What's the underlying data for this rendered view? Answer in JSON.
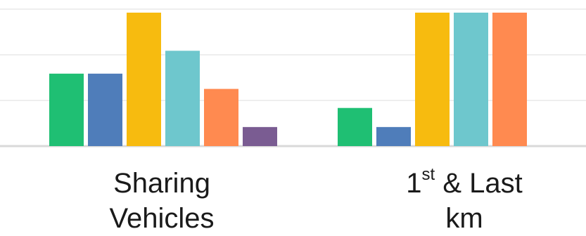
{
  "chart_data": {
    "type": "bar",
    "categories": [
      {
        "line1": "Sharing",
        "line2": "Vehicles"
      },
      {
        "line1_main": "1",
        "line1_sup": "st",
        "line1_rest": " & Last",
        "line2": "km"
      }
    ],
    "series": [
      {
        "color": "#1fbf73",
        "values": [
          1.9,
          1.0
        ]
      },
      {
        "color": "#4f7dba",
        "values": [
          1.9,
          0.5
        ]
      },
      {
        "color": "#f7bb0f",
        "values": [
          3.5,
          3.5
        ]
      },
      {
        "color": "#6ec7cd",
        "values": [
          2.5,
          3.5
        ]
      },
      {
        "color": "#ff8a50",
        "values": [
          1.5,
          3.5
        ]
      },
      {
        "color": "#7a5c92",
        "values": [
          0.5,
          null
        ]
      }
    ],
    "ylim": [
      0,
      3.5
    ],
    "grid": true,
    "gridline_values": [
      0,
      1.2,
      2.4,
      3.6
    ],
    "legend": false
  }
}
